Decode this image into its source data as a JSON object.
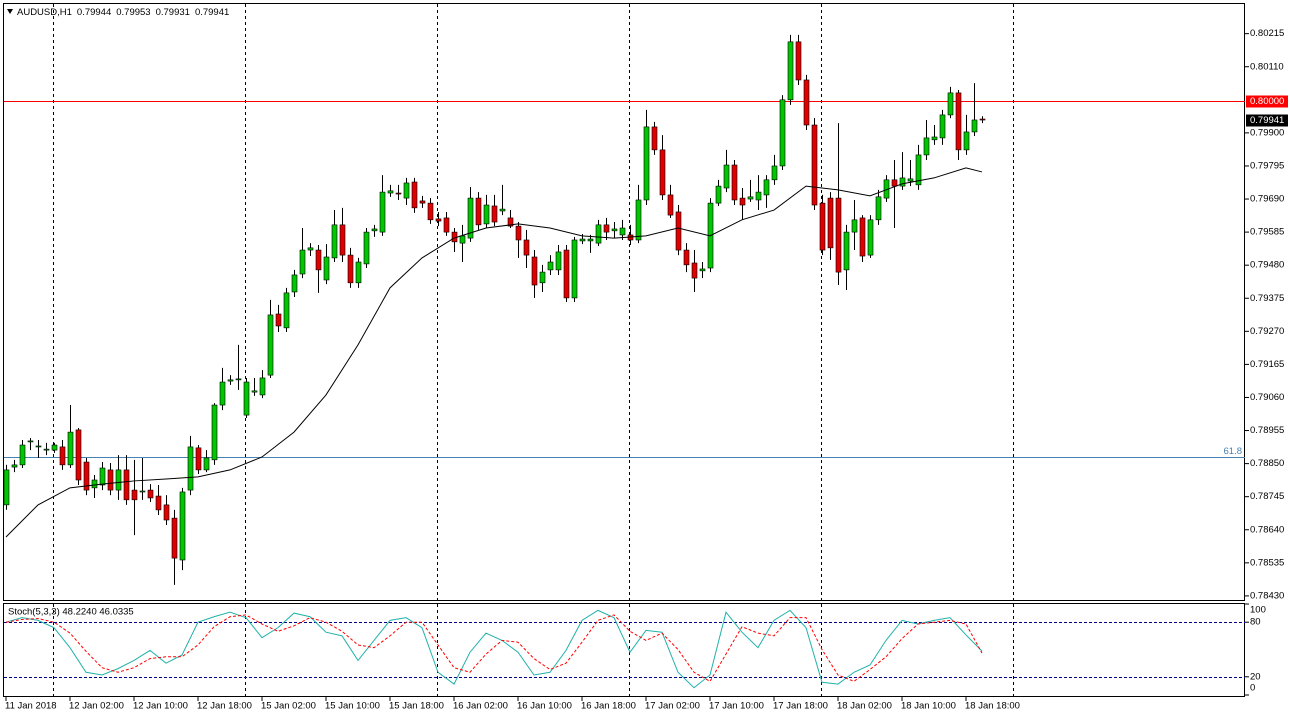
{
  "chart_data": [
    {
      "type": "candlestick",
      "symbol": "AUDUSD,H1",
      "categories": [
        "11 Jan 2018",
        null,
        null,
        null,
        null,
        null,
        null,
        null,
        "12 Jan 02:00",
        null,
        null,
        null,
        null,
        null,
        null,
        null,
        "12 Jan 10:00",
        null,
        null,
        null,
        null,
        null,
        null,
        null,
        "12 Jan 18:00",
        null,
        null,
        null,
        null,
        null,
        null,
        null,
        "15 Jan 02:00",
        null,
        null,
        null,
        null,
        null,
        null,
        null,
        "15 Jan 10:00",
        null,
        null,
        null,
        null,
        null,
        null,
        null,
        "15 Jan 18:00",
        null,
        null,
        null,
        null,
        null,
        null,
        null,
        "16 Jan 02:00",
        null,
        null,
        null,
        null,
        null,
        null,
        null,
        "16 Jan 10:00",
        null,
        null,
        null,
        null,
        null,
        null,
        null,
        "16 Jan 18:00",
        null,
        null,
        null,
        null,
        null,
        null,
        null,
        "17 Jan 02:00",
        null,
        null,
        null,
        null,
        null,
        null,
        null,
        "17 Jan 10:00",
        null,
        null,
        null,
        null,
        null,
        null,
        null,
        "17 Jan 18:00",
        null,
        null,
        null,
        null,
        null,
        null,
        null,
        "18 Jan 02:00",
        null,
        null,
        null,
        null,
        null,
        null,
        null,
        "18 Jan 10:00",
        null,
        null,
        null,
        null,
        null,
        null,
        null,
        "18 Jan 18:00",
        null,
        null
      ],
      "open": [
        0.78719,
        0.78839,
        0.78846,
        0.78919,
        0.78903,
        0.78893,
        0.78893,
        0.78903,
        0.78846,
        0.78957,
        0.78855,
        0.78773,
        0.78782,
        0.7883,
        0.78766,
        0.7883,
        0.78766,
        0.7876,
        0.78766,
        0.78747,
        0.78719,
        0.78677,
        0.78544,
        0.78766,
        0.789,
        0.7883,
        0.78862,
        0.79036,
        0.79112,
        0.79116,
        0.79004,
        0.79077,
        0.79068,
        0.79131,
        0.79325,
        0.79281,
        0.79395,
        0.79452,
        0.79528,
        0.79528,
        0.79433,
        0.79503,
        0.79608,
        0.79512,
        0.79424,
        0.79484,
        0.79589,
        0.79585,
        0.79709,
        0.79709,
        0.79693,
        0.79744,
        0.79684,
        0.79677,
        0.79627,
        0.7963,
        0.79585,
        0.7955,
        0.79566,
        0.79693,
        0.79611,
        0.79668,
        0.79652,
        0.7963,
        0.79604,
        0.7956,
        0.79506,
        0.79424,
        0.79465,
        0.79465,
        0.79528,
        0.79376,
        0.79557,
        0.79557,
        0.7955,
        0.79608,
        0.79589,
        0.79576,
        0.79576,
        0.7956,
        0.79687,
        0.79919,
        0.79846,
        0.79703,
        0.79649,
        0.79528,
        0.79487,
        0.79462,
        0.79471,
        0.79677,
        0.79725,
        0.79798,
        0.79693,
        0.7969,
        0.79687,
        0.79703,
        0.79751,
        0.79795,
        0.80005,
        0.80189,
        0.80068,
        0.79925,
        0.79677,
        0.79693,
        0.79693,
        0.79465,
        0.79585,
        0.7963,
        0.79512,
        0.79624,
        0.79693,
        0.79751,
        0.79731,
        0.79747,
        0.79735,
        0.7983,
        0.79878,
        0.79884,
        0.79957,
        0.80027,
        0.79846,
        0.79903,
        0.79944
      ],
      "high": [
        0.78846,
        0.78862,
        0.78925,
        0.78931,
        0.78925,
        0.78916,
        0.78916,
        0.78925,
        0.79036,
        0.78963,
        0.78868,
        0.78814,
        0.78855,
        0.78852,
        0.78877,
        0.78877,
        0.78862,
        0.78868,
        0.78785,
        0.78782,
        0.7875,
        0.78703,
        0.78773,
        0.78938,
        0.78909,
        0.78893,
        0.79042,
        0.79154,
        0.79131,
        0.79227,
        0.79122,
        0.79122,
        0.79147,
        0.7937,
        0.79354,
        0.79408,
        0.79465,
        0.79598,
        0.7955,
        0.79544,
        0.79547,
        0.79655,
        0.79662,
        0.79535,
        0.79503,
        0.79598,
        0.79608,
        0.79766,
        0.79735,
        0.79735,
        0.79757,
        0.79757,
        0.797,
        0.79693,
        0.79649,
        0.79649,
        0.79598,
        0.79608,
        0.79728,
        0.79712,
        0.79703,
        0.79703,
        0.79735,
        0.79655,
        0.79617,
        0.79592,
        0.79528,
        0.79481,
        0.79512,
        0.79544,
        0.79544,
        0.7957,
        0.79579,
        0.79576,
        0.79624,
        0.7963,
        0.79617,
        0.79624,
        0.79608,
        0.79735,
        0.79973,
        0.79935,
        0.79893,
        0.79735,
        0.79671,
        0.7955,
        0.79528,
        0.7949,
        0.79693,
        0.79751,
        0.79846,
        0.79814,
        0.79725,
        0.79751,
        0.79766,
        0.79766,
        0.7983,
        0.8002,
        0.80211,
        0.80211,
        0.80084,
        0.79947,
        0.79703,
        0.79712,
        0.79931,
        0.79608,
        0.79687,
        0.79639,
        0.79639,
        0.79719,
        0.79766,
        0.79814,
        0.79839,
        0.79814,
        0.79862,
        0.79941,
        0.79925,
        0.79973,
        0.80046,
        0.80036,
        0.79957,
        0.80058,
        0.79953
      ],
      "low": [
        0.78703,
        0.78823,
        0.78836,
        0.78893,
        0.78868,
        0.78877,
        0.78884,
        0.7883,
        0.78836,
        0.78782,
        0.7875,
        0.78741,
        0.78766,
        0.7875,
        0.78735,
        0.78719,
        0.78623,
        0.78735,
        0.78728,
        0.78687,
        0.78655,
        0.78465,
        0.78512,
        0.7875,
        0.78817,
        0.78823,
        0.78846,
        0.7902,
        0.791,
        0.79084,
        0.78995,
        0.79065,
        0.79058,
        0.79122,
        0.79268,
        0.79268,
        0.79379,
        0.79439,
        0.79509,
        0.79392,
        0.7942,
        0.7949,
        0.7949,
        0.79408,
        0.79408,
        0.79471,
        0.7957,
        0.79573,
        0.79697,
        0.79687,
        0.79671,
        0.79646,
        0.79662,
        0.79611,
        0.79604,
        0.79573,
        0.79522,
        0.7949,
        0.79554,
        0.79592,
        0.79598,
        0.79604,
        0.79639,
        0.79598,
        0.79503,
        0.79471,
        0.79376,
        0.79395,
        0.79449,
        0.79449,
        0.79363,
        0.79363,
        0.79547,
        0.79519,
        0.79541,
        0.7956,
        0.79566,
        0.7956,
        0.79544,
        0.7955,
        0.79671,
        0.7983,
        0.79687,
        0.7963,
        0.79512,
        0.79458,
        0.79395,
        0.79439,
        0.79458,
        0.79668,
        0.79712,
        0.79671,
        0.79624,
        0.79681,
        0.79655,
        0.79662,
        0.79735,
        0.79782,
        0.79989,
        0.80052,
        0.79909,
        0.79655,
        0.79512,
        0.79497,
        0.79417,
        0.79401,
        0.79528,
        0.7949,
        0.79503,
        0.79608,
        0.79681,
        0.79598,
        0.79719,
        0.79731,
        0.79719,
        0.79814,
        0.79862,
        0.79862,
        0.79947,
        0.79814,
        0.7983,
        0.7989,
        0.79931
      ],
      "close": [
        0.7883,
        0.78846,
        0.78909,
        0.78922,
        0.78906,
        0.78896,
        0.78909,
        0.78846,
        0.7895,
        0.78798,
        0.78766,
        0.78798,
        0.78836,
        0.78766,
        0.7883,
        0.78735,
        0.78735,
        0.78763,
        0.78741,
        0.78703,
        0.78671,
        0.7855,
        0.7876,
        0.78903,
        0.7883,
        0.78868,
        0.79036,
        0.79109,
        0.79116,
        0.79119,
        0.79109,
        0.79081,
        0.79122,
        0.79322,
        0.79287,
        0.79392,
        0.79449,
        0.79528,
        0.79535,
        0.79465,
        0.79506,
        0.79608,
        0.79512,
        0.79424,
        0.7949,
        0.79585,
        0.79595,
        0.79712,
        0.79716,
        0.79706,
        0.79741,
        0.79662,
        0.79677,
        0.79624,
        0.7962,
        0.79585,
        0.79554,
        0.79573,
        0.79693,
        0.79608,
        0.79671,
        0.79617,
        0.79658,
        0.79604,
        0.7956,
        0.79512,
        0.79417,
        0.79458,
        0.7949,
        0.79522,
        0.79376,
        0.7956,
        0.79563,
        0.79563,
        0.79608,
        0.79585,
        0.79595,
        0.79598,
        0.7956,
        0.79687,
        0.79919,
        0.79846,
        0.79703,
        0.79639,
        0.79528,
        0.79481,
        0.79439,
        0.79468,
        0.79677,
        0.79731,
        0.79798,
        0.79687,
        0.79671,
        0.79697,
        0.79712,
        0.79751,
        0.79795,
        0.80005,
        0.80189,
        0.80068,
        0.79925,
        0.79671,
        0.79528,
        0.79535,
        0.79458,
        0.79585,
        0.79624,
        0.79509,
        0.79624,
        0.79697,
        0.79751,
        0.79731,
        0.79757,
        0.79754,
        0.7983,
        0.79884,
        0.79887,
        0.79957,
        0.80027,
        0.79846,
        0.79903,
        0.79941,
        0.79941
      ],
      "up_color": "#00c800",
      "down_color": "#e00000",
      "ylim": [
        0.78417,
        0.80306
      ],
      "yticks": [
        0.80215,
        {
          "value": 0.8011,
          "label": "0.80110"
        },
        {
          "value": 0.799,
          "label": "0.79900"
        },
        0.79795,
        {
          "value": 0.7969,
          "label": "0.79690"
        },
        0.79585,
        {
          "value": 0.7948,
          "label": "0.79480"
        },
        0.79375,
        {
          "value": 0.7927,
          "label": "0.79270"
        },
        0.79165,
        {
          "value": 0.7906,
          "label": "0.79060"
        },
        0.78955,
        {
          "value": 0.7885,
          "label": "0.78850"
        },
        0.78745,
        {
          "value": 0.7864,
          "label": "0.78640"
        },
        0.78535,
        {
          "value": 0.7843,
          "label": "0.78430"
        }
      ],
      "moving_average": {
        "color": "#000000",
        "x": [
          0,
          4,
          8,
          12,
          16,
          20,
          24,
          28,
          32,
          36,
          40,
          44,
          48,
          52,
          56,
          60,
          64,
          68,
          72,
          76,
          80,
          84,
          88,
          92,
          96,
          100,
          104,
          108,
          112,
          116,
          120,
          122
        ],
        "values": [
          0.78617,
          0.78719,
          0.78773,
          0.78785,
          0.78795,
          0.78801,
          0.78808,
          0.7883,
          0.78871,
          0.7895,
          0.79068,
          0.79227,
          0.79408,
          0.79503,
          0.79566,
          0.79598,
          0.79611,
          0.79598,
          0.79573,
          0.79566,
          0.79573,
          0.79598,
          0.79573,
          0.79624,
          0.79655,
          0.79731,
          0.79719,
          0.797,
          0.79738,
          0.79757,
          0.79789,
          0.79776
        ]
      },
      "hlines": [
        {
          "value": 0.8,
          "label": "0.80000",
          "color": "#ff0000",
          "label_at": "axis"
        },
        {
          "value": 0.78872,
          "label": "61.8",
          "color": "#4682b4",
          "label_at": "line"
        }
      ],
      "current_price_color": "#000000"
    },
    {
      "type": "line",
      "label": "Stoch(5,3,3) 48.2240 46.0335",
      "ylim": [
        0,
        100
      ],
      "yticks": [
        0,
        20,
        80,
        100
      ],
      "levels": [
        20,
        80
      ],
      "level_color": "#00008b",
      "x": [
        0,
        2,
        4,
        6,
        8,
        10,
        12,
        14,
        16,
        18,
        20,
        22,
        24,
        26,
        28,
        30,
        32,
        34,
        36,
        38,
        40,
        42,
        44,
        46,
        48,
        50,
        52,
        54,
        56,
        58,
        60,
        62,
        64,
        66,
        68,
        70,
        72,
        74,
        76,
        78,
        80,
        82,
        84,
        86,
        88,
        90,
        92,
        94,
        96,
        98,
        100,
        102,
        104,
        106,
        108,
        110,
        112,
        114,
        116,
        118,
        120,
        122
      ],
      "series": [
        {
          "color": "#20b2aa",
          "dashed": false,
          "values": [
            80,
            85,
            82,
            74,
            52,
            25,
            22,
            29,
            38,
            49,
            35,
            44,
            80,
            86,
            91,
            85,
            63,
            74,
            90,
            86,
            69,
            65,
            38,
            60,
            82,
            85,
            74,
            25,
            12,
            47,
            68,
            60,
            47,
            22,
            25,
            49,
            82,
            93,
            85,
            47,
            71,
            69,
            25,
            8,
            22,
            91,
            69,
            52,
            82,
            93,
            74,
            14,
            12,
            25,
            33,
            60,
            82,
            78,
            82,
            85,
            66,
            48.224
          ]
        },
        {
          "color": "#ff0000",
          "dashed": true,
          "values": [
            80,
            83,
            84,
            80,
            68,
            48,
            30,
            25,
            30,
            40,
            42,
            42,
            55,
            75,
            86,
            88,
            78,
            70,
            76,
            85,
            80,
            70,
            55,
            52,
            65,
            80,
            80,
            55,
            30,
            25,
            45,
            60,
            58,
            40,
            28,
            35,
            58,
            82,
            88,
            70,
            60,
            68,
            50,
            25,
            15,
            45,
            75,
            68,
            65,
            85,
            85,
            50,
            22,
            15,
            28,
            42,
            62,
            78,
            80,
            82,
            78,
            46.0335
          ]
        }
      ]
    }
  ]
}
